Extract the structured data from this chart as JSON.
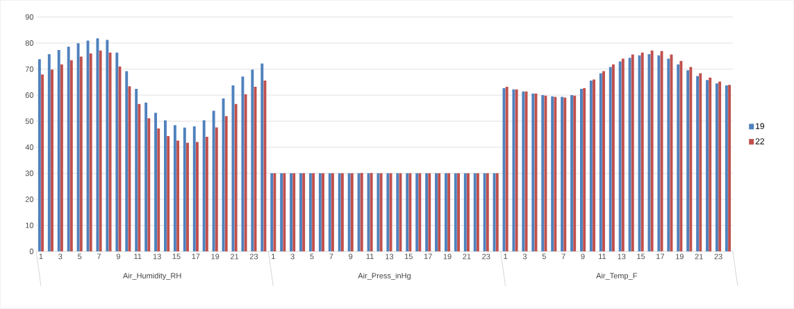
{
  "chart_data": {
    "type": "bar",
    "categories": [
      "1",
      null,
      "3",
      null,
      "5",
      null,
      "7",
      null,
      "9",
      null,
      "11",
      null,
      "13",
      null,
      "15",
      null,
      "17",
      null,
      "19",
      null,
      "21",
      null,
      "23",
      null,
      "1",
      null,
      "3",
      null,
      "5",
      null,
      "7",
      null,
      "9",
      null,
      "11",
      null,
      "13",
      null,
      "15",
      null,
      "17",
      null,
      "19",
      null,
      "21",
      null,
      "23",
      null,
      "1",
      null,
      "3",
      null,
      "5",
      null,
      "7",
      null,
      "9",
      null,
      "11",
      null,
      "13",
      null,
      "15",
      null,
      "17",
      null,
      "19",
      null,
      "21",
      null,
      "23",
      null
    ],
    "annotations": [
      "Air_Humidity_RH",
      "Air_Press_inHg",
      "Air_Temp_F"
    ],
    "series": [
      {
        "name": "19",
        "color": "#4f81bd",
        "values": [
          73.8,
          75.7,
          77.3,
          78.6,
          79.9,
          80.9,
          81.8,
          81.2,
          76.3,
          69.2,
          62.4,
          57.1,
          53.2,
          50.3,
          48.5,
          47.5,
          48.0,
          50.3,
          54.0,
          58.7,
          63.7,
          67.1,
          69.8,
          72.1,
          30.0,
          30.0,
          30.0,
          30.0,
          30.0,
          30.0,
          30.0,
          30.0,
          30.0,
          30.0,
          30.0,
          30.0,
          30.0,
          30.0,
          30.0,
          30.0,
          30.0,
          30.0,
          30.0,
          30.0,
          30.0,
          30.0,
          30.0,
          30.0,
          62.7,
          62.2,
          61.4,
          60.6,
          60.0,
          59.5,
          59.3,
          60.0,
          62.4,
          65.6,
          68.4,
          70.8,
          72.9,
          74.3,
          75.3,
          75.7,
          75.3,
          74.0,
          71.8,
          69.5,
          67.3,
          65.8,
          64.5,
          63.7
        ]
      },
      {
        "name": "22",
        "color": "#c0504d",
        "values": [
          67.9,
          69.8,
          71.8,
          73.4,
          74.8,
          76.0,
          77.1,
          76.3,
          71.0,
          63.4,
          56.6,
          51.1,
          47.2,
          44.3,
          42.5,
          41.7,
          42.0,
          44.0,
          47.6,
          51.9,
          56.6,
          60.3,
          63.2,
          65.6,
          30.0,
          30.0,
          30.0,
          30.0,
          30.0,
          30.0,
          30.0,
          30.0,
          30.0,
          30.1,
          30.1,
          30.0,
          30.0,
          30.0,
          30.0,
          30.0,
          30.0,
          30.0,
          30.0,
          30.0,
          30.0,
          30.0,
          30.0,
          30.0,
          63.2,
          62.2,
          61.4,
          60.6,
          59.8,
          59.3,
          59.1,
          59.8,
          62.7,
          66.0,
          69.2,
          71.8,
          74.0,
          75.6,
          76.3,
          77.1,
          76.9,
          75.6,
          73.1,
          70.8,
          68.4,
          66.7,
          65.2,
          63.9
        ]
      }
    ],
    "ylim": [
      0,
      90
    ],
    "yticks": [
      0,
      10,
      20,
      30,
      40,
      50,
      60,
      70,
      80,
      90
    ],
    "grid": "y",
    "legend": "right"
  }
}
